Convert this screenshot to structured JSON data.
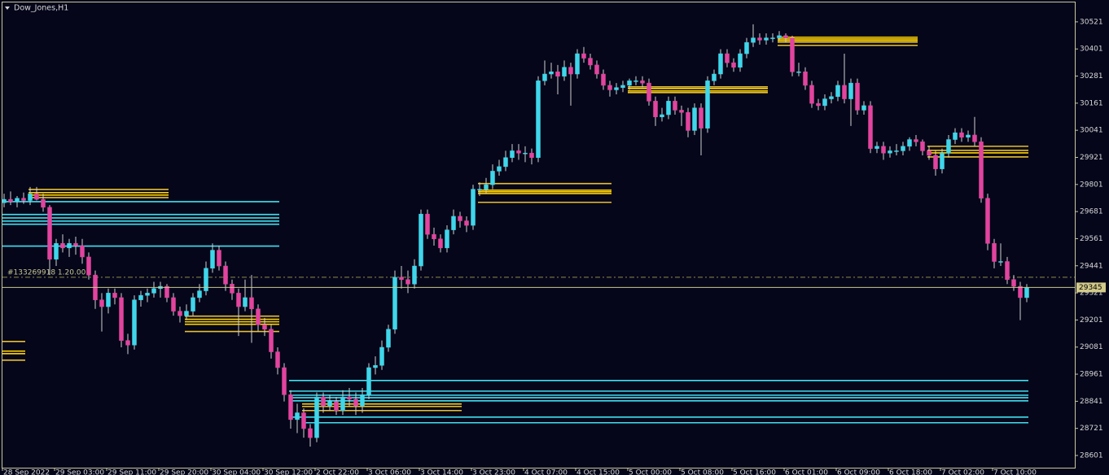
{
  "chart_data": {
    "type": "candlestick",
    "title": "Dow_Jones,H1",
    "annotation": "#133269918 1.20.00",
    "annotation_price": 29390,
    "current_price": 29345,
    "ylim": [
      28547,
      30607
    ],
    "yticks": [
      30521,
      30401,
      30281,
      30161,
      30041,
      29921,
      29801,
      29681,
      29561,
      29441,
      29321,
      29201,
      29081,
      28961,
      28841,
      28721,
      28601
    ],
    "bull_color": "#3fd6ea",
    "bear_color": "#e2449e",
    "categories": [
      "28 Sep 2022",
      null,
      null,
      null,
      null,
      null,
      null,
      null,
      "29 Sep 03:00",
      null,
      null,
      null,
      null,
      null,
      null,
      null,
      "29 Sep 11:00",
      null,
      null,
      null,
      null,
      null,
      null,
      null,
      "29 Sep 20:00",
      null,
      null,
      null,
      null,
      null,
      null,
      null,
      "30 Sep 04:00",
      null,
      null,
      null,
      null,
      null,
      null,
      null,
      "30 Sep 12:00",
      null,
      null,
      null,
      null,
      null,
      null,
      null,
      "2 Oct 22:00",
      null,
      null,
      null,
      null,
      null,
      null,
      null,
      "3 Oct 06:00",
      null,
      null,
      null,
      null,
      null,
      null,
      null,
      "3 Oct 14:00",
      null,
      null,
      null,
      null,
      null,
      null,
      null,
      "3 Oct 23:00",
      null,
      null,
      null,
      null,
      null,
      null,
      null,
      "4 Oct 07:00",
      null,
      null,
      null,
      null,
      null,
      null,
      null,
      "4 Oct 15:00",
      null,
      null,
      null,
      null,
      null,
      null,
      null,
      "5 Oct 00:00",
      null,
      null,
      null,
      null,
      null,
      null,
      null,
      "5 Oct 08:00",
      null,
      null,
      null,
      null,
      null,
      null,
      null,
      "5 Oct 16:00",
      null,
      null,
      null,
      null,
      null,
      null,
      null,
      "6 Oct 01:00",
      null,
      null,
      null,
      null,
      null,
      null,
      null,
      "6 Oct 09:00",
      null,
      null,
      null,
      null,
      null,
      null,
      null,
      "6 Oct 18:00",
      null,
      null,
      null,
      null,
      null,
      null,
      null,
      "7 Oct 02:00",
      null,
      null,
      null,
      null,
      null,
      null,
      null,
      "7 Oct 10:00",
      null,
      null,
      null,
      null,
      null
    ],
    "ohlc": [
      [
        29720,
        29760,
        29700,
        29735
      ],
      [
        29735,
        29770,
        29710,
        29725
      ],
      [
        29725,
        29750,
        29700,
        29740
      ],
      [
        29740,
        29765,
        29715,
        29730
      ],
      [
        29730,
        29790,
        29710,
        29760
      ],
      [
        29760,
        29790,
        29730,
        29735
      ],
      [
        29735,
        29760,
        29680,
        29700
      ],
      [
        29700,
        29710,
        29400,
        29470
      ],
      [
        29470,
        29560,
        29440,
        29540
      ],
      [
        29540,
        29580,
        29500,
        29520
      ],
      [
        29520,
        29560,
        29480,
        29540
      ],
      [
        29540,
        29570,
        29490,
        29530
      ],
      [
        29530,
        29560,
        29450,
        29480
      ],
      [
        29480,
        29500,
        29380,
        29400
      ],
      [
        29400,
        29420,
        29250,
        29290
      ],
      [
        29290,
        29320,
        29150,
        29260
      ],
      [
        29260,
        29340,
        29230,
        29320
      ],
      [
        29320,
        29340,
        29270,
        29300
      ],
      [
        29300,
        29320,
        29080,
        29110
      ],
      [
        29110,
        29140,
        29050,
        29090
      ],
      [
        29090,
        29310,
        29070,
        29290
      ],
      [
        29290,
        29330,
        29260,
        29310
      ],
      [
        29310,
        29340,
        29280,
        29320
      ],
      [
        29320,
        29370,
        29300,
        29340
      ],
      [
        29340,
        29370,
        29300,
        29350
      ],
      [
        29350,
        29360,
        29280,
        29300
      ],
      [
        29300,
        29320,
        29220,
        29240
      ],
      [
        29240,
        29260,
        29190,
        29220
      ],
      [
        29220,
        29270,
        29200,
        29240
      ],
      [
        29240,
        29320,
        29220,
        29300
      ],
      [
        29300,
        29360,
        29280,
        29330
      ],
      [
        29330,
        29460,
        29310,
        29430
      ],
      [
        29430,
        29540,
        29410,
        29510
      ],
      [
        29510,
        29530,
        29420,
        29440
      ],
      [
        29440,
        29460,
        29330,
        29360
      ],
      [
        29360,
        29380,
        29290,
        29320
      ],
      [
        29320,
        29340,
        29130,
        29260
      ],
      [
        29260,
        29380,
        29240,
        29300
      ],
      [
        29300,
        29400,
        29100,
        29250
      ],
      [
        29250,
        29270,
        29150,
        29180
      ],
      [
        29180,
        29210,
        29130,
        29160
      ],
      [
        29160,
        29180,
        29030,
        29060
      ],
      [
        29060,
        29080,
        28960,
        28990
      ],
      [
        28990,
        29010,
        28840,
        28870
      ],
      [
        28870,
        28890,
        28720,
        28760
      ],
      [
        28760,
        28830,
        28700,
        28790
      ],
      [
        28790,
        28810,
        28680,
        28720
      ],
      [
        28720,
        28740,
        28640,
        28680
      ],
      [
        28680,
        28880,
        28660,
        28860
      ],
      [
        28860,
        28880,
        28790,
        28820
      ],
      [
        28820,
        28870,
        28800,
        28840
      ],
      [
        28840,
        28860,
        28780,
        28800
      ],
      [
        28800,
        28890,
        28780,
        28860
      ],
      [
        28860,
        28900,
        28820,
        28850
      ],
      [
        28850,
        28880,
        28780,
        28820
      ],
      [
        28820,
        28900,
        28790,
        28870
      ],
      [
        28870,
        29010,
        28850,
        28990
      ],
      [
        28990,
        29040,
        28960,
        29000
      ],
      [
        29000,
        29110,
        28980,
        29080
      ],
      [
        29080,
        29180,
        29060,
        29160
      ],
      [
        29160,
        29420,
        29140,
        29390
      ],
      [
        29390,
        29440,
        29340,
        29380
      ],
      [
        29380,
        29420,
        29320,
        29360
      ],
      [
        29360,
        29470,
        29340,
        29440
      ],
      [
        29440,
        29690,
        29420,
        29670
      ],
      [
        29670,
        29690,
        29560,
        29580
      ],
      [
        29580,
        29610,
        29530,
        29560
      ],
      [
        29560,
        29580,
        29500,
        29520
      ],
      [
        29520,
        29620,
        29500,
        29600
      ],
      [
        29600,
        29690,
        29580,
        29660
      ],
      [
        29660,
        29680,
        29610,
        29640
      ],
      [
        29640,
        29660,
        29590,
        29620
      ],
      [
        29620,
        29800,
        29600,
        29780
      ],
      [
        29780,
        29810,
        29750,
        29780
      ],
      [
        29780,
        29830,
        29760,
        29800
      ],
      [
        29800,
        29890,
        29780,
        29860
      ],
      [
        29860,
        29910,
        29840,
        29880
      ],
      [
        29880,
        29950,
        29860,
        29920
      ],
      [
        29920,
        29980,
        29900,
        29950
      ],
      [
        29950,
        29980,
        29910,
        29940
      ],
      [
        29940,
        29970,
        29900,
        29940
      ],
      [
        29940,
        29960,
        29890,
        29920
      ],
      [
        29920,
        30280,
        29900,
        30260
      ],
      [
        30260,
        30350,
        30240,
        30290
      ],
      [
        30290,
        30340,
        30270,
        30300
      ],
      [
        30300,
        30330,
        30200,
        30280
      ],
      [
        30280,
        30350,
        30260,
        30320
      ],
      [
        30320,
        30340,
        30150,
        30290
      ],
      [
        30290,
        30400,
        30270,
        30380
      ],
      [
        30380,
        30410,
        30340,
        30360
      ],
      [
        30360,
        30380,
        30310,
        30330
      ],
      [
        30330,
        30350,
        30270,
        30290
      ],
      [
        30290,
        30310,
        30220,
        30240
      ],
      [
        30240,
        30260,
        30190,
        30220
      ],
      [
        30220,
        30250,
        30200,
        30230
      ],
      [
        30230,
        30260,
        30210,
        30240
      ],
      [
        30240,
        30270,
        30220,
        30260
      ],
      [
        30260,
        30280,
        30240,
        30260
      ],
      [
        30260,
        30280,
        30230,
        30250
      ],
      [
        30250,
        30270,
        30150,
        30170
      ],
      [
        30170,
        30190,
        30060,
        30100
      ],
      [
        30100,
        30140,
        30080,
        30110
      ],
      [
        30110,
        30190,
        30090,
        30170
      ],
      [
        30170,
        30190,
        30110,
        30130
      ],
      [
        30130,
        30150,
        30060,
        30120
      ],
      [
        30120,
        30140,
        30010,
        30040
      ],
      [
        30040,
        30160,
        30020,
        30140
      ],
      [
        30140,
        30160,
        29930,
        30050
      ],
      [
        30050,
        30280,
        30030,
        30260
      ],
      [
        30260,
        30310,
        30240,
        30290
      ],
      [
        30290,
        30400,
        30270,
        30380
      ],
      [
        30380,
        30400,
        30320,
        30340
      ],
      [
        30340,
        30360,
        30300,
        30320
      ],
      [
        30320,
        30400,
        30300,
        30380
      ],
      [
        30380,
        30450,
        30360,
        30430
      ],
      [
        30430,
        30510,
        30410,
        30450
      ],
      [
        30450,
        30470,
        30420,
        30440
      ],
      [
        30440,
        30470,
        30420,
        30450
      ],
      [
        30450,
        30470,
        30430,
        30450
      ],
      [
        30450,
        30480,
        30440,
        30460
      ],
      [
        30460,
        30470,
        30430,
        30450
      ],
      [
        30450,
        30460,
        30280,
        30300
      ],
      [
        30300,
        30340,
        30280,
        30300
      ],
      [
        30300,
        30320,
        30220,
        30240
      ],
      [
        30240,
        30260,
        30140,
        30160
      ],
      [
        30160,
        30180,
        30130,
        30150
      ],
      [
        30150,
        30200,
        30130,
        30180
      ],
      [
        30180,
        30210,
        30160,
        30190
      ],
      [
        30190,
        30260,
        30170,
        30240
      ],
      [
        30240,
        30380,
        30160,
        30180
      ],
      [
        30180,
        30270,
        30060,
        30250
      ],
      [
        30250,
        30270,
        30110,
        30130
      ],
      [
        30130,
        30170,
        30110,
        30150
      ],
      [
        30150,
        30170,
        29940,
        29960
      ],
      [
        29960,
        29990,
        29940,
        29970
      ],
      [
        29970,
        29990,
        29910,
        29940
      ],
      [
        29940,
        29970,
        29920,
        29950
      ],
      [
        29950,
        29980,
        29930,
        29950
      ],
      [
        29950,
        29990,
        29930,
        29970
      ],
      [
        29970,
        30010,
        29950,
        30000
      ],
      [
        30000,
        30020,
        29970,
        29990
      ],
      [
        29990,
        30000,
        29930,
        29950
      ],
      [
        29950,
        29970,
        29910,
        29930
      ],
      [
        29930,
        29950,
        29840,
        29870
      ],
      [
        29870,
        29960,
        29850,
        29940
      ],
      [
        29940,
        30020,
        29920,
        30000
      ],
      [
        30000,
        30050,
        29980,
        30030
      ],
      [
        30030,
        30050,
        29990,
        30010
      ],
      [
        30010,
        30040,
        29990,
        30020
      ],
      [
        30020,
        30100,
        29970,
        29990
      ],
      [
        29990,
        30010,
        29720,
        29740
      ],
      [
        29740,
        29760,
        29510,
        29540
      ],
      [
        29540,
        29560,
        29430,
        29460
      ],
      [
        29460,
        29540,
        29440,
        29460
      ],
      [
        29460,
        29480,
        29360,
        29380
      ],
      [
        29380,
        29400,
        29330,
        29350
      ],
      [
        29350,
        29370,
        29200,
        29300
      ],
      [
        29300,
        29360,
        29280,
        29345
      ]
    ],
    "levels": [
      {
        "value": 29779,
        "color": "#e8c030",
        "from": 4,
        "to": 25
      },
      {
        "value": 29765,
        "color": "#ffd200",
        "from": 4,
        "to": 25
      },
      {
        "value": 29754,
        "color": "#ffd200",
        "from": 4,
        "to": 25
      },
      {
        "value": 29743,
        "color": "#e8c030",
        "from": 4,
        "to": 25
      },
      {
        "value": 29725,
        "color": "#40e0f0",
        "from": 0,
        "to": 42
      },
      {
        "value": 29668,
        "color": "#40e0f0",
        "from": 0,
        "to": 42
      },
      {
        "value": 29653,
        "color": "#40e0f0",
        "from": 0,
        "to": 42
      },
      {
        "value": 29639,
        "color": "#40e0f0",
        "from": 0,
        "to": 42
      },
      {
        "value": 29625,
        "color": "#40e0f0",
        "from": 0,
        "to": 42
      },
      {
        "value": 29528,
        "color": "#40e0f0",
        "from": 0,
        "to": 42
      },
      {
        "value": 29106,
        "color": "#e8c030",
        "from": 0,
        "to": 3
      },
      {
        "value": 29063,
        "color": "#ffd200",
        "from": 0,
        "to": 3
      },
      {
        "value": 29052,
        "color": "#ffd200",
        "from": 0,
        "to": 3
      },
      {
        "value": 29023,
        "color": "#e8c030",
        "from": 0,
        "to": 3
      },
      {
        "value": 29218,
        "color": "#e8c030",
        "from": 28,
        "to": 42
      },
      {
        "value": 29204,
        "color": "#ffd200",
        "from": 28,
        "to": 42
      },
      {
        "value": 29193,
        "color": "#ffd200",
        "from": 28,
        "to": 42
      },
      {
        "value": 29182,
        "color": "#ffd200",
        "from": 28,
        "to": 42
      },
      {
        "value": 29150,
        "color": "#e8c030",
        "from": 28,
        "to": 42
      },
      {
        "value": 28933,
        "color": "#40e0f0",
        "from": 44,
        "to": 157
      },
      {
        "value": 28886,
        "color": "#40e0f0",
        "from": 44,
        "to": 157
      },
      {
        "value": 28868,
        "color": "#40e0f0",
        "from": 44,
        "to": 157
      },
      {
        "value": 28857,
        "color": "#40e0f0",
        "from": 44,
        "to": 157
      },
      {
        "value": 28843,
        "color": "#40e0f0",
        "from": 44,
        "to": 157
      },
      {
        "value": 28771,
        "color": "#40e0f0",
        "from": 44,
        "to": 157
      },
      {
        "value": 28746,
        "color": "#40e0f0",
        "from": 46,
        "to": 157
      },
      {
        "value": 28829,
        "color": "#ffd200",
        "from": 46,
        "to": 70
      },
      {
        "value": 28818,
        "color": "#e8c030",
        "from": 46,
        "to": 70
      },
      {
        "value": 28800,
        "color": "#e8c030",
        "from": 46,
        "to": 70
      },
      {
        "value": 29805,
        "color": "#e8c030",
        "from": 73,
        "to": 93
      },
      {
        "value": 29776,
        "color": "#ffd200",
        "from": 73,
        "to": 93
      },
      {
        "value": 29769,
        "color": "#ffd200",
        "from": 73,
        "to": 93
      },
      {
        "value": 29761,
        "color": "#ffd200",
        "from": 73,
        "to": 93
      },
      {
        "value": 29722,
        "color": "#e8c030",
        "from": 73,
        "to": 93
      },
      {
        "value": 30233,
        "color": "#e8c030",
        "from": 96,
        "to": 117
      },
      {
        "value": 30226,
        "color": "#ffd200",
        "from": 96,
        "to": 117
      },
      {
        "value": 30215,
        "color": "#ffd200",
        "from": 96,
        "to": 117
      },
      {
        "value": 30208,
        "color": "#e8c030",
        "from": 96,
        "to": 117
      },
      {
        "value": 30453,
        "color": "#ffd200",
        "from": 119,
        "to": 140
      },
      {
        "value": 30445,
        "color": "#ffd200",
        "from": 119,
        "to": 140
      },
      {
        "value": 30438,
        "color": "#ffd200",
        "from": 119,
        "to": 140
      },
      {
        "value": 30431,
        "color": "#e8c030",
        "from": 119,
        "to": 140
      },
      {
        "value": 30417,
        "color": "#e8c030",
        "from": 119,
        "to": 140
      },
      {
        "value": 29970,
        "color": "#e8c030",
        "from": 142,
        "to": 157
      },
      {
        "value": 29952,
        "color": "#ffd200",
        "from": 142,
        "to": 157
      },
      {
        "value": 29941,
        "color": "#ffd200",
        "from": 142,
        "to": 157
      },
      {
        "value": 29923,
        "color": "#e8c030",
        "from": 142,
        "to": 157
      }
    ]
  }
}
